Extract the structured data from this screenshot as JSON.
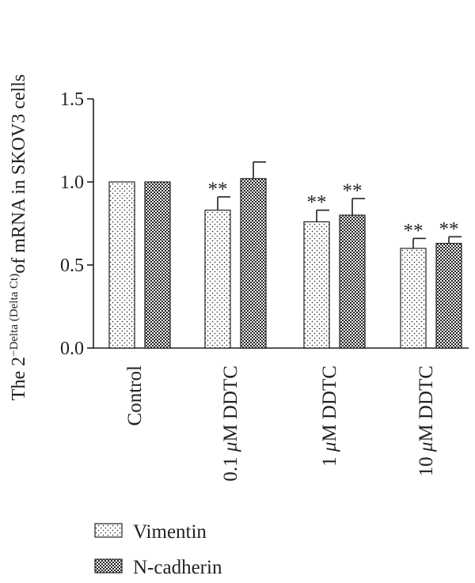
{
  "chart_data": {
    "type": "bar",
    "ylabel": {
      "prefix": "The 2",
      "superscript": "−Delta (Delta Ct)",
      "suffix": "of mRNA in SKOV3 cells"
    },
    "xlabel": "",
    "ylim": [
      0,
      1.5
    ],
    "yticks": [
      "0.0",
      "0.5",
      "1.0",
      "1.5"
    ],
    "ytick_values": [
      0,
      0.5,
      1.0,
      1.5
    ],
    "categories": [
      {
        "pre": "Control",
        "mu": "",
        "post": ""
      },
      {
        "pre": "0.1 ",
        "mu": "μ",
        "post": "M DDTC"
      },
      {
        "pre": "1 ",
        "mu": "μ",
        "post": "M DDTC"
      },
      {
        "pre": "10 ",
        "mu": "μ",
        "post": "M DDTC"
      }
    ],
    "series": [
      {
        "name": "Vimentin",
        "pattern": "dots",
        "values": [
          1.0,
          0.83,
          0.76,
          0.6
        ],
        "errors": [
          0,
          0.08,
          0.07,
          0.06
        ],
        "annotations": [
          "",
          "**",
          "**",
          "**"
        ]
      },
      {
        "name": "N-cadherin",
        "pattern": "checker",
        "values": [
          1.0,
          1.02,
          0.8,
          0.63
        ],
        "errors": [
          0,
          0.1,
          0.1,
          0.04
        ],
        "annotations": [
          "",
          "",
          "**",
          "**"
        ]
      }
    ],
    "grid": false,
    "legend_position": "bottom-left"
  }
}
